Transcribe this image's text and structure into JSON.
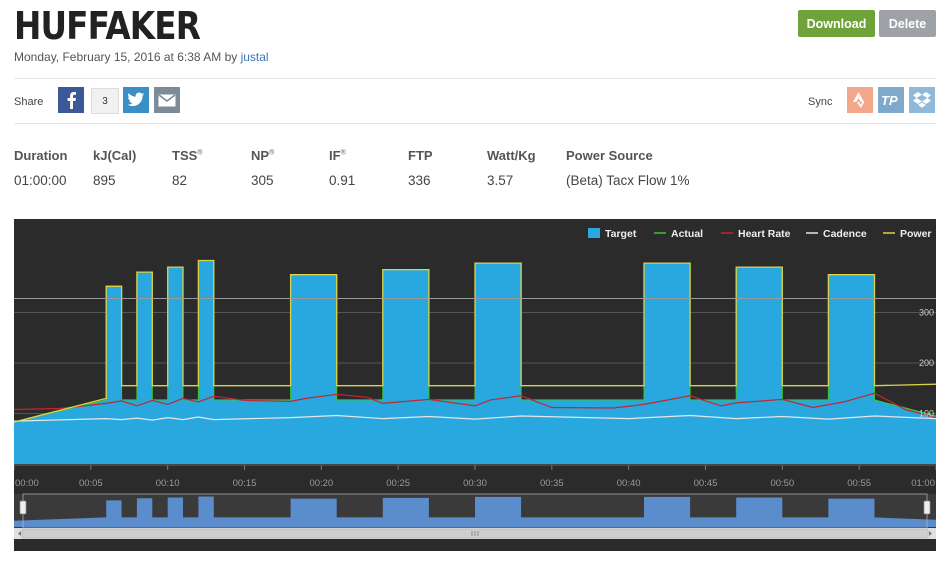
{
  "header": {
    "title": "HUFFAKER",
    "date": "Monday, February 15, 2016 at 6:38 AM by ",
    "author": "justal",
    "download_label": "Download",
    "delete_label": "Delete"
  },
  "share": {
    "label": "Share",
    "facebook_count": "3",
    "sync_label": "Sync",
    "icons": [
      "facebook-icon",
      "twitter-icon",
      "email-icon",
      "strava-icon",
      "trainingpeaks-icon",
      "dropbox-icon"
    ]
  },
  "stats": [
    {
      "label": "Duration",
      "value": "01:00:00",
      "mark": ""
    },
    {
      "label": "kJ(Cal)",
      "value": "895",
      "mark": ""
    },
    {
      "label": "TSS",
      "value": "82",
      "mark": "®"
    },
    {
      "label": "NP",
      "value": "305",
      "mark": "®"
    },
    {
      "label": "IF",
      "value": "0.91",
      "mark": "®"
    },
    {
      "label": "FTP",
      "value": "336",
      "mark": ""
    },
    {
      "label": "Watt/Kg",
      "value": "3.57",
      "mark": ""
    },
    {
      "label": "Power Source",
      "value": "(Beta) Tacx Flow 1%",
      "mark": ""
    }
  ],
  "colors": {
    "download": "#6fa33a",
    "delete": "#9ea2a6",
    "chart_bg": "#2b2b2b",
    "target": "#29a8e0",
    "actual": "#39c82e",
    "heart_rate": "#c0282f",
    "cadence": "#e6e6e6",
    "power": "#d9d24a",
    "navigator_fill": "#5b8ccc"
  },
  "chart_data": {
    "type": "area",
    "legend": [
      "Target",
      "Actual",
      "Heart Rate",
      "Cadence",
      "Power"
    ],
    "legend_position": "top-right",
    "x_ticks": [
      "00:00",
      "00:05",
      "00:10",
      "00:15",
      "00:20",
      "00:25",
      "00:30",
      "00:35",
      "00:40",
      "00:45",
      "00:50",
      "00:55",
      "01:00"
    ],
    "y_ticks": [
      "100",
      "200",
      "300"
    ],
    "xlim": [
      0,
      60
    ],
    "ylim": [
      0,
      410
    ],
    "target": [
      [
        0,
        83
      ],
      [
        6,
        127
      ],
      [
        6,
        352
      ],
      [
        7,
        352
      ],
      [
        7,
        127
      ],
      [
        8,
        127
      ],
      [
        8,
        380
      ],
      [
        9,
        380
      ],
      [
        9,
        127
      ],
      [
        10,
        127
      ],
      [
        10,
        390
      ],
      [
        11,
        390
      ],
      [
        11,
        127
      ],
      [
        12,
        127
      ],
      [
        12,
        403
      ],
      [
        13,
        403
      ],
      [
        13,
        127
      ],
      [
        18,
        127
      ],
      [
        18,
        375
      ],
      [
        21,
        375
      ],
      [
        21,
        127
      ],
      [
        24,
        127
      ],
      [
        24,
        385
      ],
      [
        27,
        385
      ],
      [
        27,
        127
      ],
      [
        30,
        127
      ],
      [
        30,
        398
      ],
      [
        33,
        398
      ],
      [
        33,
        127
      ],
      [
        41,
        127
      ],
      [
        41,
        398
      ],
      [
        44,
        398
      ],
      [
        44,
        127
      ],
      [
        47,
        127
      ],
      [
        47,
        390
      ],
      [
        50,
        390
      ],
      [
        50,
        127
      ],
      [
        53,
        127
      ],
      [
        53,
        375
      ],
      [
        56,
        375
      ],
      [
        56,
        127
      ],
      [
        60,
        95
      ]
    ],
    "power": [
      [
        0,
        83
      ],
      [
        6,
        130
      ],
      [
        6,
        352
      ],
      [
        7,
        352
      ],
      [
        7,
        155
      ],
      [
        8,
        155
      ],
      [
        8,
        380
      ],
      [
        9,
        380
      ],
      [
        9,
        155
      ],
      [
        10,
        155
      ],
      [
        10,
        390
      ],
      [
        11,
        390
      ],
      [
        11,
        155
      ],
      [
        12,
        155
      ],
      [
        12,
        403
      ],
      [
        13,
        403
      ],
      [
        13,
        155
      ],
      [
        18,
        155
      ],
      [
        18,
        375
      ],
      [
        21,
        375
      ],
      [
        21,
        155
      ],
      [
        24,
        155
      ],
      [
        24,
        385
      ],
      [
        27,
        385
      ],
      [
        27,
        155
      ],
      [
        30,
        155
      ],
      [
        30,
        398
      ],
      [
        33,
        398
      ],
      [
        33,
        155
      ],
      [
        41,
        155
      ],
      [
        41,
        398
      ],
      [
        44,
        398
      ],
      [
        44,
        155
      ],
      [
        47,
        155
      ],
      [
        47,
        390
      ],
      [
        50,
        390
      ],
      [
        50,
        155
      ],
      [
        53,
        155
      ],
      [
        53,
        375
      ],
      [
        56,
        375
      ],
      [
        56,
        155
      ],
      [
        60,
        158
      ]
    ],
    "heart_rate": [
      [
        0,
        108
      ],
      [
        3,
        110
      ],
      [
        6,
        120
      ],
      [
        7,
        125
      ],
      [
        8,
        115
      ],
      [
        9,
        126
      ],
      [
        10,
        118
      ],
      [
        11,
        130
      ],
      [
        12,
        123
      ],
      [
        13,
        134
      ],
      [
        15,
        126
      ],
      [
        18,
        124
      ],
      [
        19,
        130
      ],
      [
        21,
        138
      ],
      [
        23,
        132
      ],
      [
        24,
        120
      ],
      [
        27,
        128
      ],
      [
        30,
        115
      ],
      [
        31,
        127
      ],
      [
        33,
        135
      ],
      [
        35,
        112
      ],
      [
        39,
        111
      ],
      [
        41,
        118
      ],
      [
        44,
        135
      ],
      [
        46,
        115
      ],
      [
        47,
        121
      ],
      [
        50,
        128
      ],
      [
        52,
        112
      ],
      [
        54,
        123
      ],
      [
        56,
        140
      ],
      [
        58,
        108
      ],
      [
        60,
        92
      ]
    ],
    "cadence": [
      [
        0,
        85
      ],
      [
        6,
        90
      ],
      [
        7,
        88
      ],
      [
        8,
        91
      ],
      [
        9,
        87
      ],
      [
        10,
        92
      ],
      [
        11,
        88
      ],
      [
        12,
        93
      ],
      [
        13,
        88
      ],
      [
        18,
        92
      ],
      [
        21,
        96
      ],
      [
        24,
        90
      ],
      [
        27,
        94
      ],
      [
        30,
        89
      ],
      [
        33,
        95
      ],
      [
        40,
        90
      ],
      [
        44,
        96
      ],
      [
        47,
        90
      ],
      [
        50,
        94
      ],
      [
        53,
        89
      ],
      [
        56,
        95
      ],
      [
        60,
        90
      ]
    ]
  }
}
